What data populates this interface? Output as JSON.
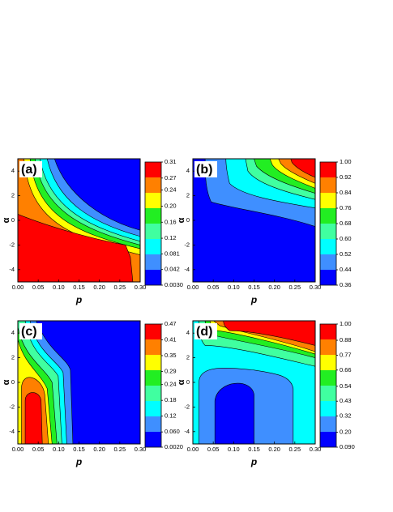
{
  "chart_data": [
    {
      "type": "contour",
      "panel_label": "(a)",
      "xlabel": "p",
      "ylabel": "α",
      "xlim": [
        0,
        0.3
      ],
      "ylim": [
        -5,
        5
      ],
      "xticks": [
        {
          "value": 0,
          "label": "0.00"
        },
        {
          "value": 0.05,
          "label": "0.05"
        },
        {
          "value": 0.1,
          "label": "0.10"
        },
        {
          "value": 0.15,
          "label": "0.15"
        },
        {
          "value": 0.2,
          "label": "0.20"
        },
        {
          "value": 0.25,
          "label": "0.25"
        },
        {
          "value": 0.3,
          "label": "0.30"
        }
      ],
      "yticks": [
        -4,
        -2,
        0,
        2,
        4
      ],
      "clim": [
        0.003,
        0.31
      ],
      "cticks": [
        {
          "value": 0.003,
          "label": "0.0030"
        },
        0.042,
        0.081,
        0.12,
        0.16,
        {
          "value": 0.2,
          "label": "0.20"
        },
        0.24,
        0.27,
        0.31
      ],
      "colors": [
        "#0000ff",
        "#3f8fff",
        "#00ffff",
        "#40ffa0",
        "#22ee22",
        "#ffff00",
        "#ff8000",
        "#ff0000"
      ]
    },
    {
      "type": "contour",
      "panel_label": "(b)",
      "xlabel": "p",
      "ylabel": "α",
      "xlim": [
        0,
        0.3
      ],
      "ylim": [
        -5,
        5
      ],
      "xticks": [
        {
          "value": 0,
          "label": "0.00"
        },
        {
          "value": 0.05,
          "label": "0.05"
        },
        {
          "value": 0.1,
          "label": "0.10"
        },
        {
          "value": 0.15,
          "label": "0.15"
        },
        {
          "value": 0.2,
          "label": "0.20"
        },
        {
          "value": 0.25,
          "label": "0.25"
        },
        {
          "value": 0.3,
          "label": "0.30"
        }
      ],
      "yticks": [
        -4,
        -2,
        0,
        2,
        4
      ],
      "clim": [
        0.36,
        1
      ],
      "cticks": [
        0.36,
        0.44,
        0.52,
        {
          "value": 0.6,
          "label": "0.60"
        },
        0.68,
        0.76,
        0.84,
        0.92,
        {
          "value": 1,
          "label": "1.00"
        }
      ],
      "colors": [
        "#0000ff",
        "#3f8fff",
        "#00ffff",
        "#40ffa0",
        "#22ee22",
        "#ffff00",
        "#ff8000",
        "#ff0000"
      ]
    },
    {
      "type": "contour",
      "panel_label": "(c)",
      "xlabel": "p",
      "ylabel": "α",
      "xlim": [
        0,
        0.3
      ],
      "ylim": [
        -5,
        5
      ],
      "xticks": [
        {
          "value": 0,
          "label": "0.00"
        },
        {
          "value": 0.05,
          "label": "0.05"
        },
        {
          "value": 0.1,
          "label": "0.10"
        },
        {
          "value": 0.15,
          "label": "0.15"
        },
        {
          "value": 0.2,
          "label": "0.20"
        },
        {
          "value": 0.25,
          "label": "0.25"
        },
        {
          "value": 0.3,
          "label": "0.30"
        }
      ],
      "yticks": [
        -4,
        -2,
        0,
        2,
        4
      ],
      "clim": [
        0.002,
        0.47
      ],
      "cticks": [
        {
          "value": 0.002,
          "label": "0.0020"
        },
        {
          "value": 0.06,
          "label": "0.060"
        },
        0.12,
        0.18,
        0.24,
        0.29,
        0.35,
        0.41,
        0.47
      ],
      "colors": [
        "#0000ff",
        "#3f8fff",
        "#00ffff",
        "#40ffa0",
        "#22ee22",
        "#ffff00",
        "#ff8000",
        "#ff0000"
      ]
    },
    {
      "type": "contour",
      "panel_label": "(d)",
      "xlabel": "p",
      "ylabel": "α",
      "xlim": [
        0,
        0.3
      ],
      "ylim": [
        -5,
        5
      ],
      "xticks": [
        {
          "value": 0,
          "label": "0.00"
        },
        {
          "value": 0.05,
          "label": "0.05"
        },
        {
          "value": 0.1,
          "label": "0.10"
        },
        {
          "value": 0.15,
          "label": "0.15"
        },
        {
          "value": 0.2,
          "label": "0.20"
        },
        {
          "value": 0.25,
          "label": "0.25"
        },
        {
          "value": 0.3,
          "label": "0.30"
        }
      ],
      "yticks": [
        -4,
        -2,
        0,
        2,
        4
      ],
      "clim": [
        0.09,
        1
      ],
      "cticks": [
        {
          "value": 0.09,
          "label": "0.090"
        },
        {
          "value": 0.2,
          "label": "0.20"
        },
        0.32,
        0.43,
        0.54,
        0.66,
        0.77,
        0.88,
        {
          "value": 1,
          "label": "1.00"
        }
      ],
      "colors": [
        "#0000ff",
        "#3f8fff",
        "#00ffff",
        "#40ffa0",
        "#22ee22",
        "#ffff00",
        "#ff8000",
        "#ff0000"
      ]
    }
  ]
}
